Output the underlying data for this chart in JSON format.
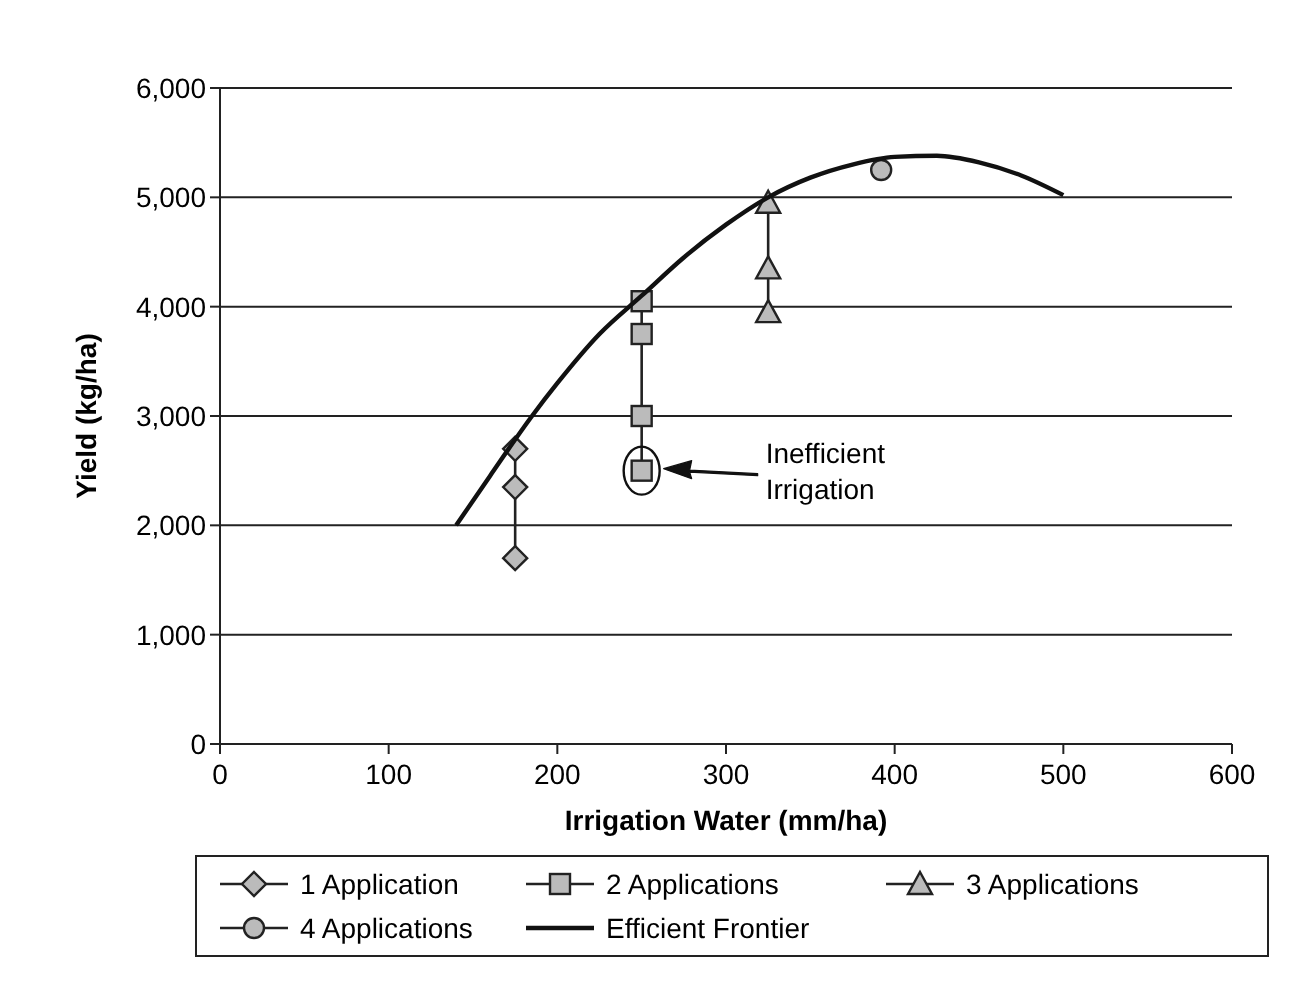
{
  "chart_data": {
    "type": "line",
    "xlabel": "Irrigation Water (mm/ha)",
    "ylabel": "Yield (kg/ha)",
    "xlim": [
      0,
      600
    ],
    "xticks": [
      0,
      100,
      200,
      300,
      400,
      500,
      600
    ],
    "ylim": [
      0,
      6000
    ],
    "yticks": [
      {
        "value": 0,
        "label": "0"
      },
      {
        "value": 1000,
        "label": "1,000"
      },
      {
        "value": 2000,
        "label": "2,000"
      },
      {
        "value": 3000,
        "label": "3,000"
      },
      {
        "value": 4000,
        "label": "4,000"
      },
      {
        "value": 5000,
        "label": "5,000"
      },
      {
        "value": 6000,
        "label": "6,000"
      }
    ],
    "grid": "y",
    "legend": "bottom",
    "series": [
      {
        "name": "1 Application",
        "color": "#222222",
        "marker": "diamond",
        "x": [
          175,
          175,
          175
        ],
        "values": [
          2700,
          2350,
          1700
        ]
      },
      {
        "name": "2 Applications",
        "color": "#222222",
        "marker": "square",
        "x": [
          250,
          250,
          250,
          250
        ],
        "values": [
          4050,
          3750,
          3000,
          2500
        ]
      },
      {
        "name": "3 Applications",
        "color": "#222222",
        "marker": "triangle",
        "x": [
          325,
          325,
          325
        ],
        "values": [
          4950,
          4350,
          3950
        ]
      },
      {
        "name": "4 Applications",
        "color": "#222222",
        "marker": "circle",
        "x": [
          392
        ],
        "values": [
          5250
        ]
      },
      {
        "name": "Efficient Frontier",
        "color": "#111111",
        "marker": "none",
        "x": [
          140,
          160,
          185,
          200,
          225,
          250,
          275,
          300,
          325,
          350,
          375,
          400,
          425,
          450,
          475,
          500
        ],
        "values": [
          2000,
          2450,
          3000,
          3300,
          3750,
          4100,
          4450,
          4750,
          5000,
          5180,
          5300,
          5370,
          5380,
          5320,
          5200,
          5020
        ]
      }
    ],
    "annotations": [
      "Inefficient Irrigation"
    ]
  }
}
